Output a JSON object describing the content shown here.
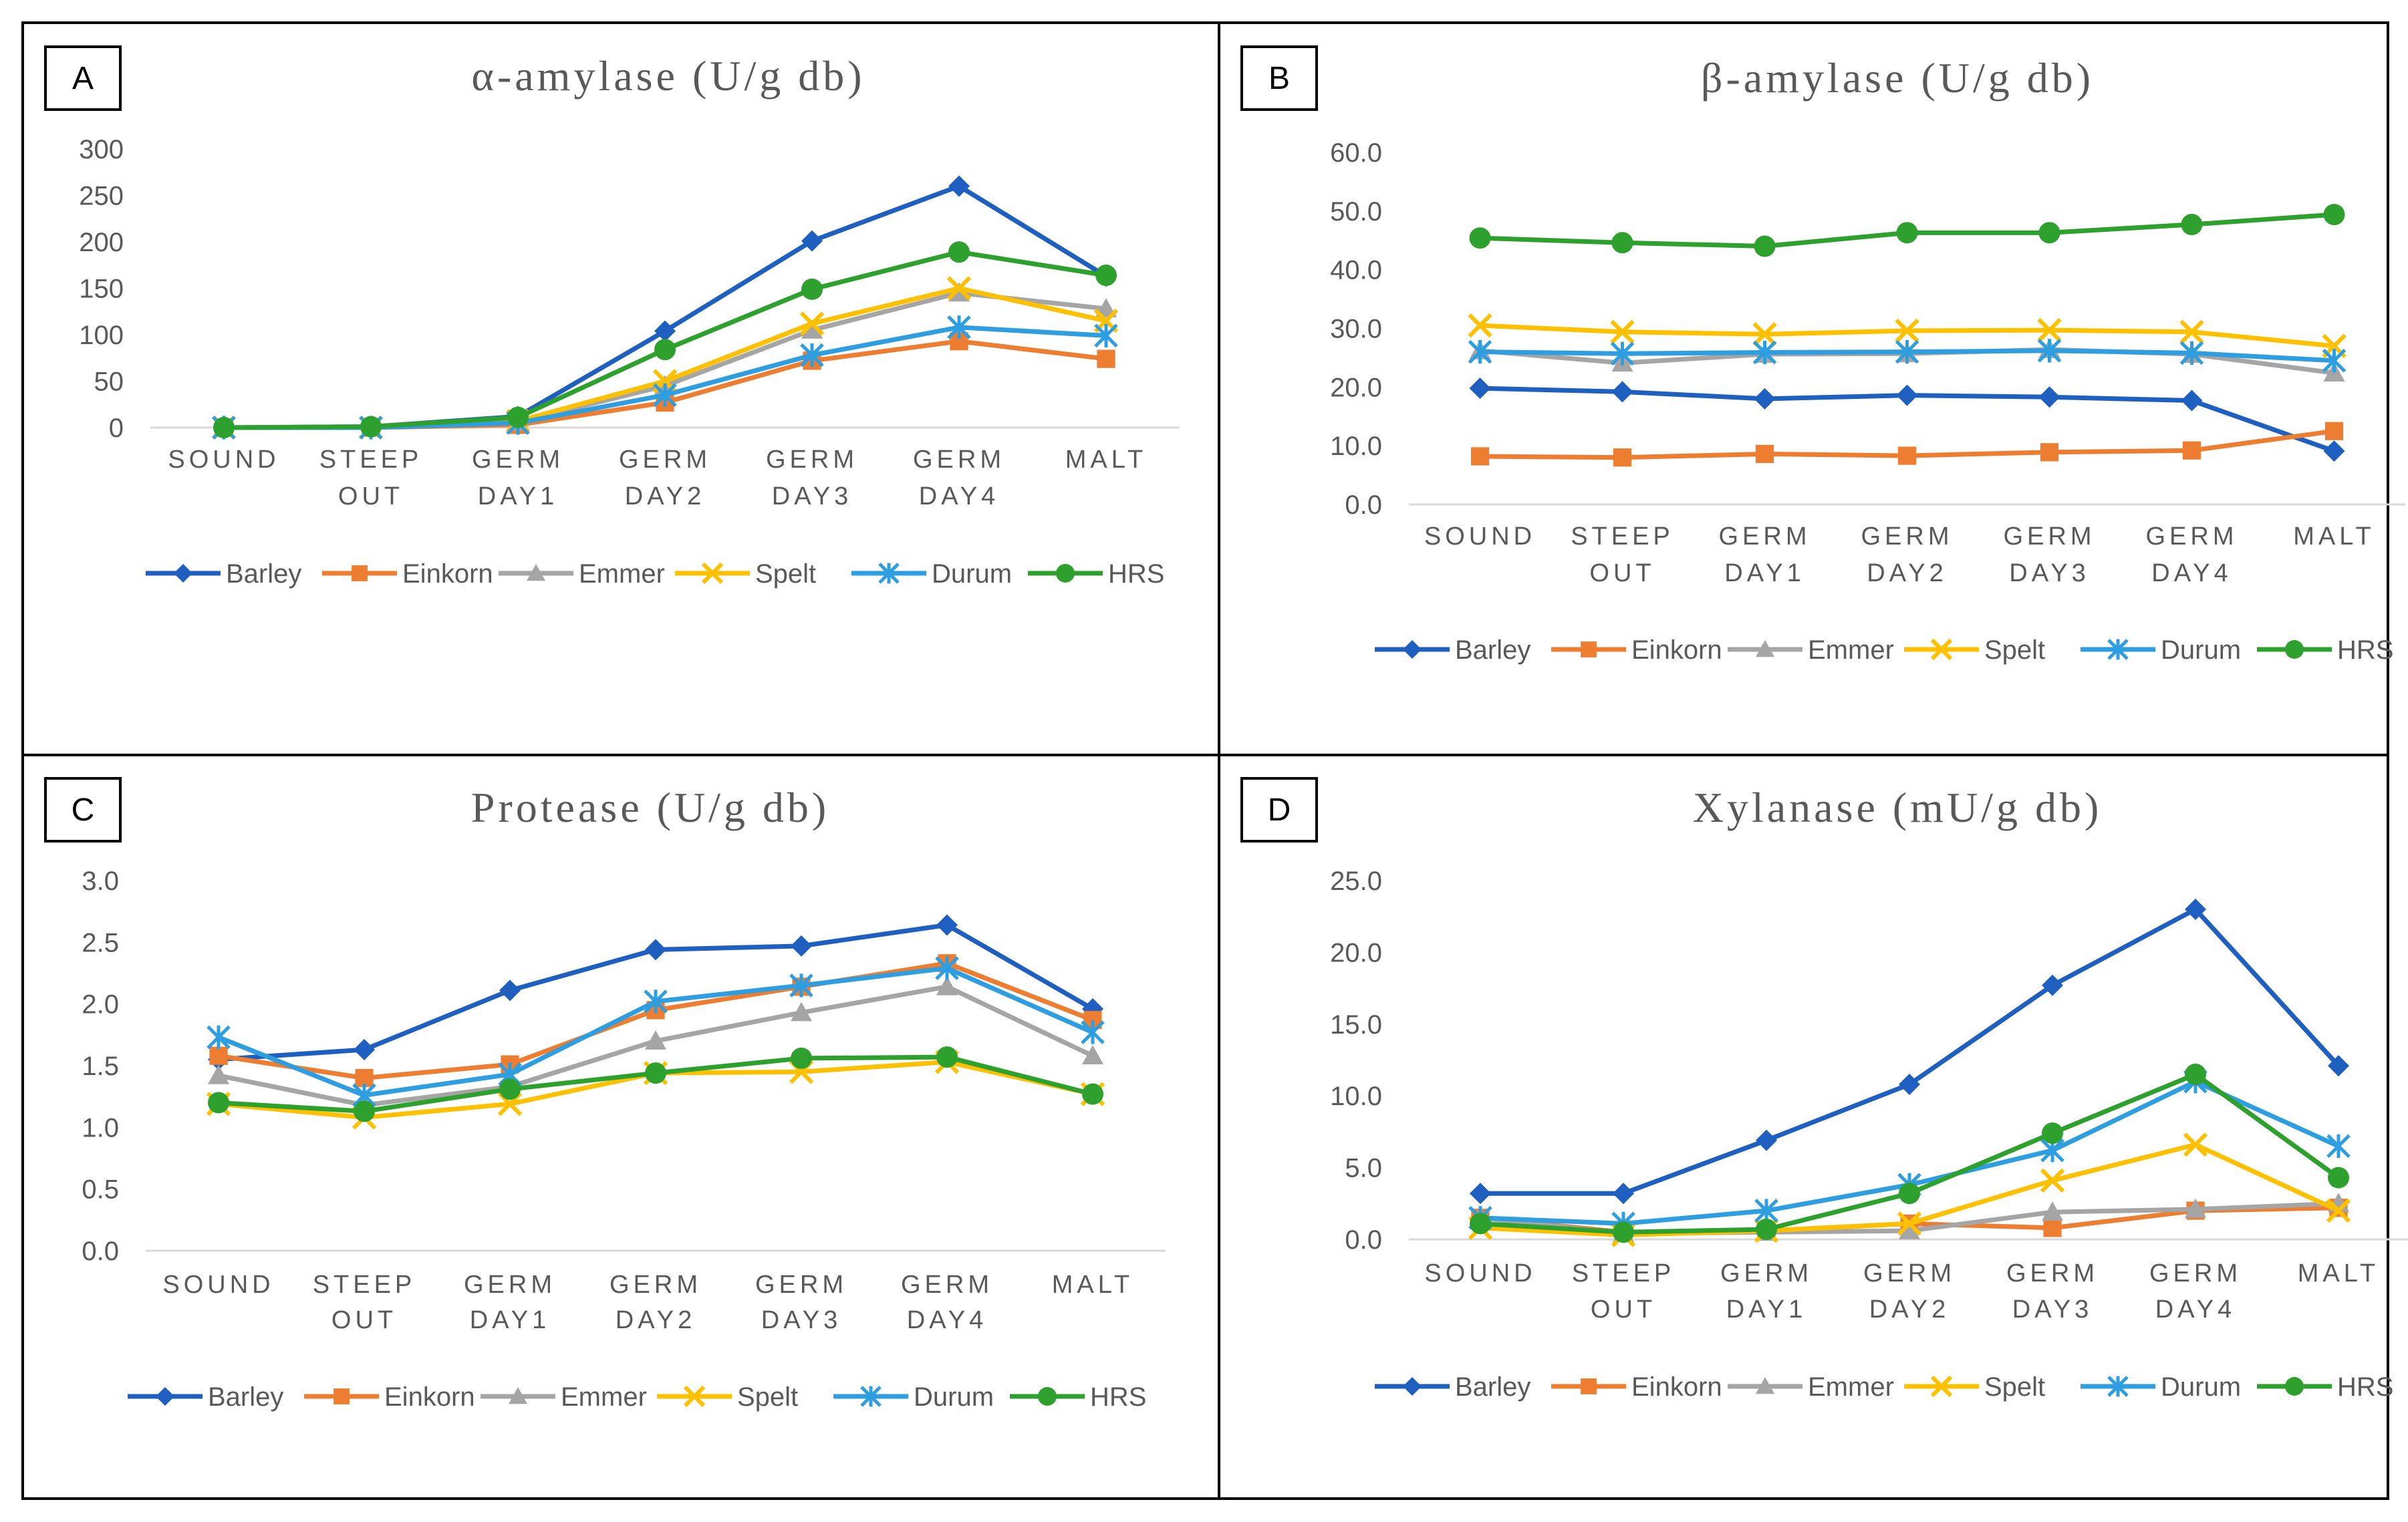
{
  "chart_data": [
    {
      "type": "line",
      "panel_label": "A",
      "title": "α-amylase (U/g db)",
      "categories": [
        "SOUND",
        "STEEP OUT",
        "GERM DAY1",
        "GERM DAY2",
        "GERM DAY3",
        "GERM DAY4",
        "MALT"
      ],
      "ylim": [
        0,
        300
      ],
      "yticks": [
        "0",
        "50",
        "100",
        "150",
        "200",
        "250",
        "300"
      ],
      "legend_position": "bottom",
      "series": [
        {
          "name": "Barley",
          "values": [
            0,
            1,
            12,
            104,
            201,
            260,
            163
          ]
        },
        {
          "name": "Einkorn",
          "values": [
            0,
            0,
            3,
            27,
            72,
            93,
            74
          ]
        },
        {
          "name": "Emmer",
          "values": [
            0,
            0,
            6,
            45,
            105,
            145,
            128
          ]
        },
        {
          "name": "Spelt",
          "values": [
            0,
            0,
            7,
            50,
            112,
            150,
            115
          ]
        },
        {
          "name": "Durum",
          "values": [
            0,
            0,
            5,
            35,
            78,
            108,
            99
          ]
        },
        {
          "name": "HRS",
          "values": [
            0,
            1,
            11,
            84,
            149,
            189,
            164
          ]
        }
      ]
    },
    {
      "type": "line",
      "panel_label": "B",
      "title": "β-amylase (U/g db)",
      "categories": [
        "SOUND",
        "STEEP OUT",
        "GERM DAY1",
        "GERM DAY2",
        "GERM DAY3",
        "GERM DAY4",
        "MALT"
      ],
      "ylim": [
        0,
        60
      ],
      "yticks": [
        "0.0",
        "10.0",
        "20.0",
        "30.0",
        "40.0",
        "50.0",
        "60.0"
      ],
      "legend_position": "bottom",
      "series": [
        {
          "name": "Barley",
          "values": [
            19.8,
            19.2,
            18.0,
            18.6,
            18.3,
            17.7,
            9.1
          ]
        },
        {
          "name": "Einkorn",
          "values": [
            8.2,
            8.0,
            8.6,
            8.3,
            8.9,
            9.2,
            12.5
          ]
        },
        {
          "name": "Emmer",
          "values": [
            26.2,
            24.1,
            25.6,
            25.7,
            26.4,
            25.6,
            22.4
          ]
        },
        {
          "name": "Spelt",
          "values": [
            30.5,
            29.4,
            29.0,
            29.6,
            29.7,
            29.4,
            27.0
          ]
        },
        {
          "name": "Durum",
          "values": [
            26.0,
            25.7,
            25.9,
            26.0,
            26.2,
            25.8,
            24.5
          ]
        },
        {
          "name": "HRS",
          "values": [
            45.4,
            44.6,
            44.0,
            46.3,
            46.3,
            47.7,
            49.4
          ]
        }
      ]
    },
    {
      "type": "line",
      "panel_label": "C",
      "title": "Protease (U/g db)",
      "categories": [
        "SOUND",
        "STEEP OUT",
        "GERM DAY1",
        "GERM DAY2",
        "GERM DAY3",
        "GERM DAY4",
        "MALT"
      ],
      "ylim": [
        0,
        3
      ],
      "yticks": [
        "0.0",
        "0.5",
        "1.0",
        "1.5",
        "2.0",
        "2.5",
        "3.0"
      ],
      "legend_position": "bottom",
      "series": [
        {
          "name": "Barley",
          "values": [
            1.55,
            1.63,
            2.11,
            2.44,
            2.47,
            2.64,
            1.96
          ]
        },
        {
          "name": "Einkorn",
          "values": [
            1.58,
            1.4,
            1.51,
            1.95,
            2.14,
            2.33,
            1.87
          ]
        },
        {
          "name": "Emmer",
          "values": [
            1.42,
            1.18,
            1.33,
            1.7,
            1.93,
            2.14,
            1.58
          ]
        },
        {
          "name": "Spelt",
          "values": [
            1.19,
            1.08,
            1.19,
            1.44,
            1.45,
            1.53,
            1.27
          ]
        },
        {
          "name": "Durum",
          "values": [
            1.73,
            1.26,
            1.43,
            2.02,
            2.15,
            2.29,
            1.77
          ]
        },
        {
          "name": "HRS",
          "values": [
            1.2,
            1.13,
            1.31,
            1.44,
            1.56,
            1.57,
            1.27
          ]
        }
      ]
    },
    {
      "type": "line",
      "panel_label": "D",
      "title": "Xylanase (mU/g db)",
      "categories": [
        "SOUND",
        "STEEP OUT",
        "GERM DAY1",
        "GERM DAY2",
        "GERM DAY3",
        "GERM DAY4",
        "MALT"
      ],
      "ylim": [
        0,
        25
      ],
      "yticks": [
        "0.0",
        "5.0",
        "10.0",
        "15.0",
        "20.0",
        "25.0"
      ],
      "legend_position": "bottom",
      "series": [
        {
          "name": "Barley",
          "values": [
            3.2,
            3.2,
            6.9,
            10.8,
            17.7,
            23.0,
            12.1
          ]
        },
        {
          "name": "Einkorn",
          "values": [
            1.5,
            0.5,
            0.6,
            1.1,
            0.8,
            2.0,
            2.2
          ]
        },
        {
          "name": "Emmer",
          "values": [
            1.5,
            0.4,
            0.5,
            0.6,
            1.9,
            2.1,
            2.5
          ]
        },
        {
          "name": "Spelt",
          "values": [
            0.8,
            0.3,
            0.6,
            1.1,
            4.1,
            6.6,
            2.0
          ]
        },
        {
          "name": "Durum",
          "values": [
            1.5,
            1.1,
            2.0,
            3.8,
            6.2,
            11.0,
            6.5
          ]
        },
        {
          "name": "HRS",
          "values": [
            1.1,
            0.5,
            0.7,
            3.2,
            7.4,
            11.5,
            4.3
          ]
        }
      ]
    }
  ],
  "series_style": [
    {
      "name": "Barley",
      "color": "#1f5fbf",
      "marker": "diamond"
    },
    {
      "name": "Einkorn",
      "color": "#ed7d31",
      "marker": "square"
    },
    {
      "name": "Emmer",
      "color": "#a5a5a5",
      "marker": "triangle"
    },
    {
      "name": "Spelt",
      "color": "#ffc000",
      "marker": "x"
    },
    {
      "name": "Durum",
      "color": "#2e9ee0",
      "marker": "asterisk"
    },
    {
      "name": "HRS",
      "color": "#2ea02e",
      "marker": "circle"
    }
  ]
}
